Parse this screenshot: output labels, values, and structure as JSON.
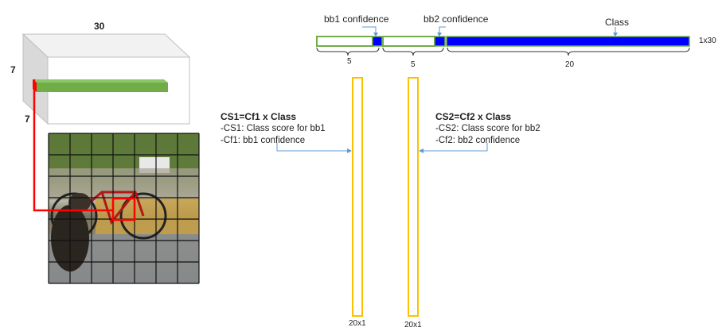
{
  "cube": {
    "width_label": "30",
    "height_label": "7",
    "depth_label": "7",
    "colors": {
      "face": "#ffffff",
      "edge": "#cfcfcf",
      "side": "#d9d9d9",
      "top": "#f0f0f0",
      "cell": "#70ad47"
    }
  },
  "grid": {
    "rows": 7,
    "cols": 7,
    "highlight_color": "#ff0000"
  },
  "vector": {
    "size_label": "1x30",
    "segments": [
      {
        "name": "bb1-box",
        "units": 4,
        "color": "#70ad47",
        "fill": "none"
      },
      {
        "name": "bb1-confidence",
        "units": 1,
        "color": "#0000ff",
        "fill": "blue"
      },
      {
        "name": "bb2-box",
        "units": 4,
        "color": "#70ad47",
        "fill": "none"
      },
      {
        "name": "bb2-confidence",
        "units": 1,
        "color": "#0000ff",
        "fill": "blue"
      },
      {
        "name": "class-probs",
        "units": 20,
        "color": "#0000ff",
        "fill": "blue"
      }
    ],
    "callouts": {
      "bb1": "bb1 confidence",
      "bb2": "bb2 confidence",
      "class": "Class"
    },
    "brackets": [
      "5",
      "5",
      "20"
    ]
  },
  "columns": [
    {
      "size_label": "20x1",
      "color": "#ffc000"
    },
    {
      "size_label": "20x1",
      "color": "#ffc000"
    }
  ],
  "cs1": {
    "heading": "CS1=Cf1 x Class",
    "lines": [
      "-CS1: Class score for bb1",
      "-Cf1: bb1 confidence"
    ]
  },
  "cs2": {
    "heading": "CS2=Cf2 x Class",
    "lines": [
      "-CS2: Class score for bb2",
      "-Cf2: bb2 confidence"
    ]
  },
  "arrow_color": "#5b9bd5"
}
